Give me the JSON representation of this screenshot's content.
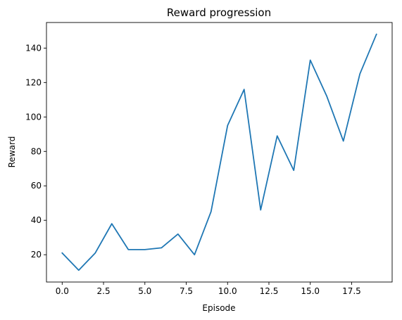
{
  "chart_data": {
    "type": "line",
    "title": "Reward progression",
    "xlabel": "Episode",
    "ylabel": "Reward",
    "xlim": [
      -0.95,
      19.95
    ],
    "ylim": [
      4.15,
      154.85
    ],
    "grid": false,
    "x": [
      0,
      1,
      2,
      3,
      4,
      5,
      6,
      7,
      8,
      9,
      10,
      11,
      12,
      13,
      14,
      15,
      16,
      17,
      18,
      19
    ],
    "series": [
      {
        "values": [
          21,
          11,
          21,
          38,
          23,
          23,
          24,
          32,
          20,
          45,
          95,
          116,
          46,
          89,
          69,
          133,
          112,
          86,
          125,
          148
        ],
        "color": "#1f77b4"
      }
    ],
    "xticks": [
      0,
      2.5,
      5,
      7.5,
      10,
      12.5,
      15,
      17.5
    ],
    "xtick_labels": [
      "0.0",
      "2.5",
      "5.0",
      "7.5",
      "10.0",
      "12.5",
      "15.0",
      "17.5"
    ],
    "yticks": [
      20,
      40,
      60,
      80,
      100,
      120,
      140
    ],
    "ytick_labels": [
      "20",
      "40",
      "60",
      "80",
      "100",
      "120",
      "140"
    ]
  }
}
